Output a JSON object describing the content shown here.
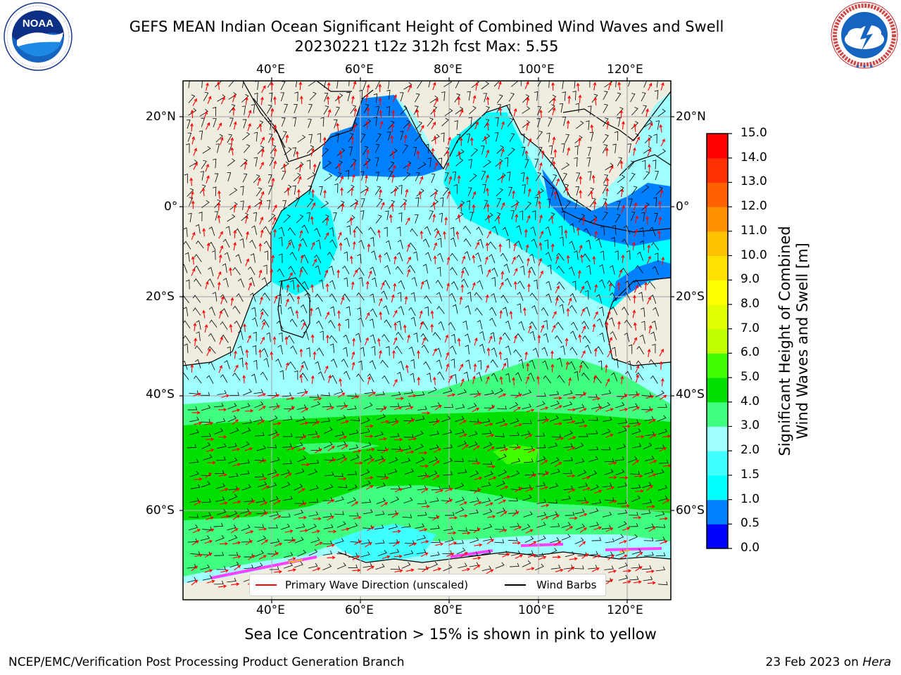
{
  "header": {
    "title_line1": "GEFS MEAN Indian Ocean Significant Height of Combined Wind Waves and Swell",
    "title_line2": "20230221 t12z 312h fcst   Max: 5.55"
  },
  "logos": {
    "noaa": {
      "text": "NOAA",
      "ring_text": "NATIONAL OCEANIC AND ATMOSPHERIC ADMINISTRATION · U.S. DEPARTMENT OF COMMERCE"
    },
    "nws": {
      "ring_text": "NATIONAL WEATHER SERVICE"
    }
  },
  "map": {
    "lon_ticks_top": [
      "40°E",
      "60°E",
      "80°E",
      "100°E",
      "120°E"
    ],
    "lon_ticks_bottom": [
      "40°E",
      "60°E",
      "80°E",
      "100°E",
      "120°E"
    ],
    "lat_ticks_left": [
      "20°N",
      "0°",
      "20°S",
      "40°S",
      "60°S"
    ],
    "lat_ticks_right": [
      "20°N",
      "0°",
      "20°S",
      "40°S",
      "60°S"
    ],
    "lon_range": [
      20,
      130
    ],
    "lat_range": [
      -73,
      27
    ],
    "land_color": "#efede0",
    "legend": {
      "wave_direction": "Primary Wave Direction (unscaled)",
      "wind_barbs": "Wind Barbs",
      "wave_color": "#ff0000",
      "barb_color": "#000000"
    }
  },
  "colorbar": {
    "label_line1": "Significant Height of Combined",
    "label_line2": "Wind Waves and Swell [m]",
    "ticks": [
      "0.0",
      "0.5",
      "1.0",
      "1.5",
      "2.0",
      "3.0",
      "4.0",
      "5.0",
      "6.0",
      "7.0",
      "8.0",
      "9.0",
      "10.0",
      "11.0",
      "12.0",
      "13.0",
      "14.0",
      "15.0"
    ],
    "colors": [
      "#0000ff",
      "#0080ff",
      "#00ffff",
      "#40ffff",
      "#a0ffff",
      "#40ff80",
      "#00e000",
      "#40ff00",
      "#c0ff00",
      "#e0ff00",
      "#ffff00",
      "#ffe000",
      "#ffc000",
      "#ff9000",
      "#ff6000",
      "#ff3000",
      "#ff0000"
    ]
  },
  "captions": {
    "sea_ice": "Sea Ice Concentration > 15% is shown in pink to yellow",
    "footer_left": "NCEP/EMC/Verification Post Processing Product Generation Branch",
    "footer_date": "23 Feb 2023 on ",
    "footer_host": "Hera"
  }
}
